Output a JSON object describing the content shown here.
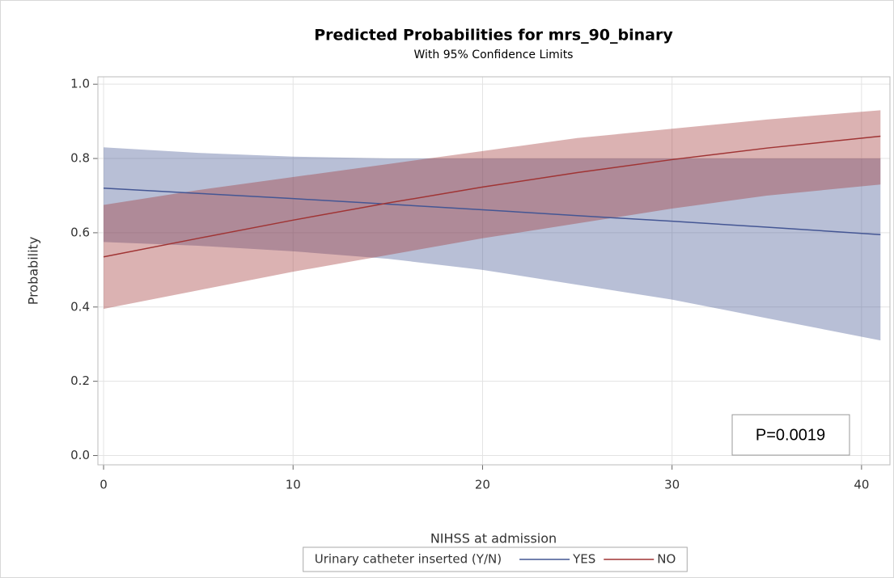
{
  "chart_data": {
    "type": "line",
    "title": "Predicted Probabilities for mrs_90_binary",
    "subtitle": "With 95% Confidence Limits",
    "x_label": "NIHSS at admission",
    "y_label": "Probability",
    "x": [
      0,
      5,
      10,
      15,
      20,
      25,
      30,
      35,
      41
    ],
    "series": [
      {
        "name": "YES",
        "color": "#445694",
        "values": [
          0.72,
          0.706,
          0.692,
          0.677,
          0.662,
          0.646,
          0.631,
          0.615,
          0.595
        ],
        "lower": [
          0.575,
          0.565,
          0.55,
          0.53,
          0.5,
          0.46,
          0.42,
          0.37,
          0.31
        ],
        "upper": [
          0.83,
          0.815,
          0.805,
          0.8,
          0.8,
          0.8,
          0.8,
          0.8,
          0.8
        ]
      },
      {
        "name": "NO",
        "color": "#a03434",
        "values": [
          0.535,
          0.585,
          0.634,
          0.68,
          0.723,
          0.762,
          0.797,
          0.828,
          0.86
        ],
        "lower": [
          0.395,
          0.445,
          0.495,
          0.54,
          0.585,
          0.625,
          0.665,
          0.7,
          0.73
        ],
        "upper": [
          0.675,
          0.715,
          0.75,
          0.785,
          0.82,
          0.855,
          0.88,
          0.905,
          0.93
        ]
      }
    ],
    "legend_title": "Urinary catheter inserted (Y/N)",
    "legend": "bottom",
    "annotation": "P=0.0019",
    "xlim": [
      -0.3,
      41.5
    ],
    "ylim": [
      -0.025,
      1.02
    ],
    "xticks": [
      0,
      10,
      20,
      30,
      40
    ],
    "yticks": [
      {
        "value": 0,
        "label": "0.0"
      },
      {
        "value": 0.2,
        "label": "0.2"
      },
      {
        "value": 0.4,
        "label": "0.4"
      },
      {
        "value": 0.6,
        "label": "0.6"
      },
      {
        "value": 0.8,
        "label": "0.8"
      },
      {
        "value": 1,
        "label": "1.0"
      }
    ],
    "grid": true
  }
}
